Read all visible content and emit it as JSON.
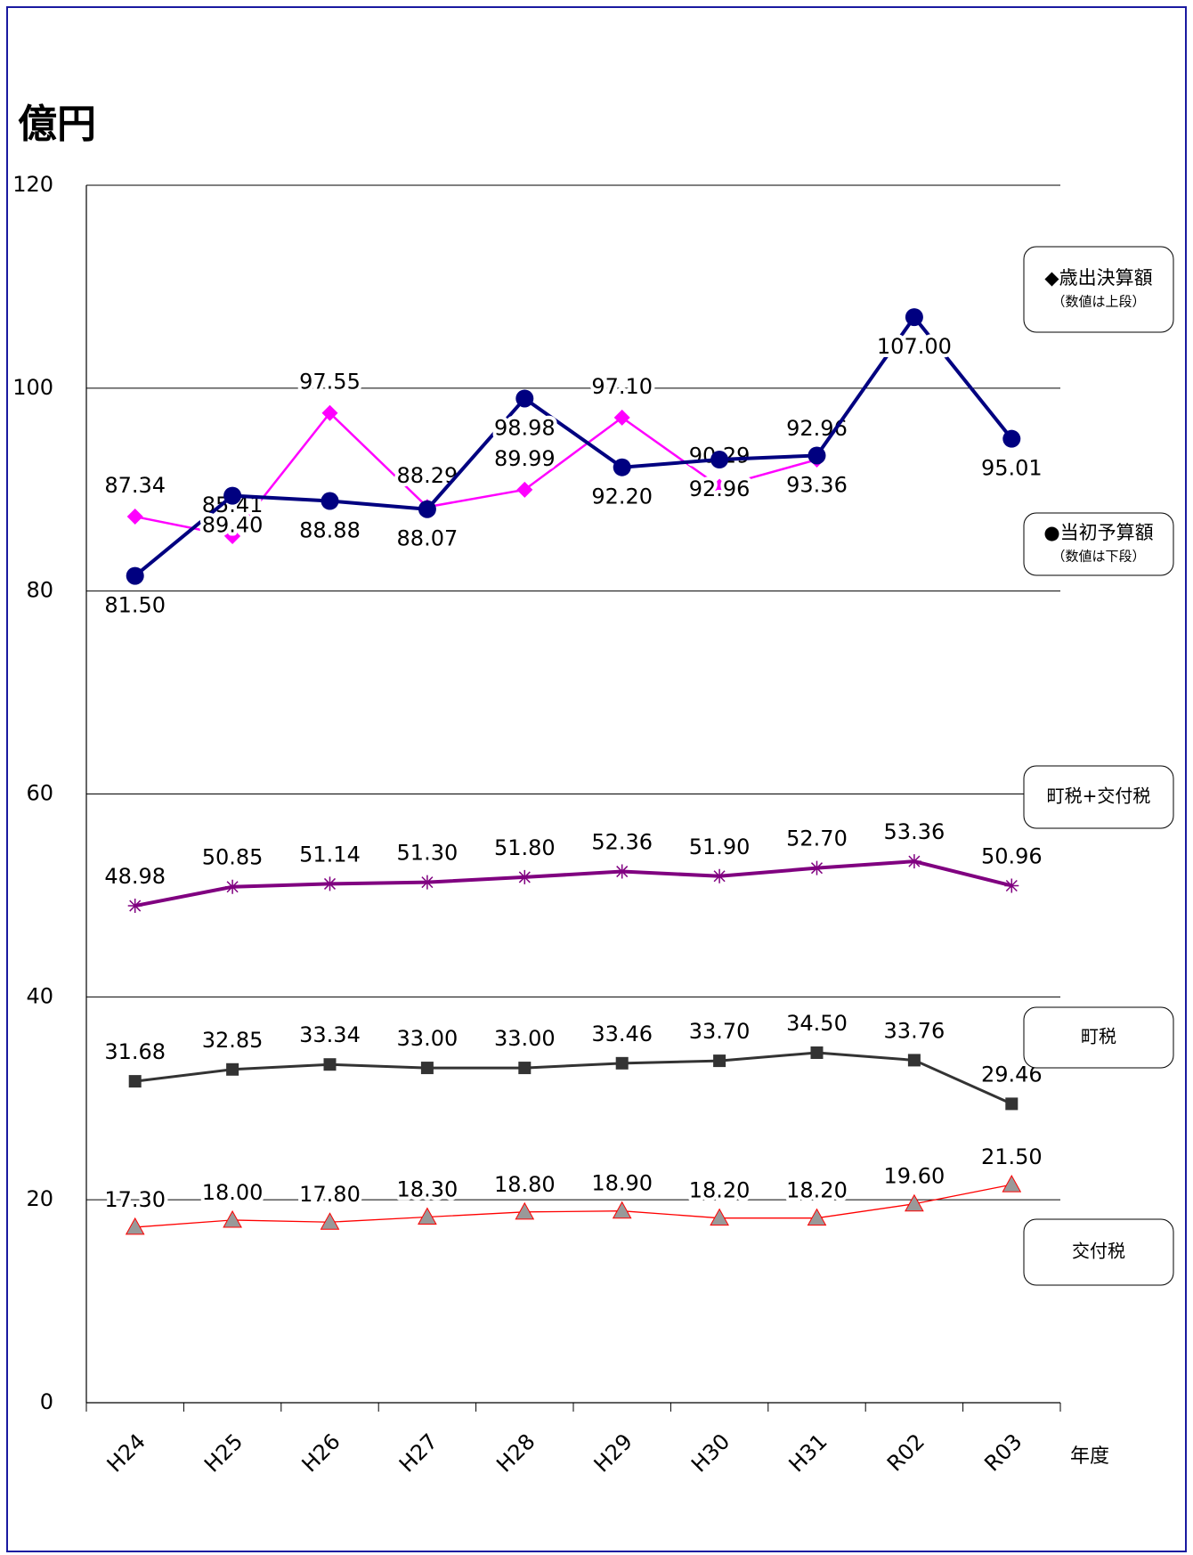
{
  "chart_data": {
    "type": "line",
    "y_label": "億円",
    "x_label": "年度",
    "categories": [
      "H24",
      "H25",
      "H26",
      "H27",
      "H28",
      "H29",
      "H30",
      "H31",
      "R02",
      "R03"
    ],
    "ylim": [
      0,
      120
    ],
    "yticks": [
      0,
      20,
      40,
      60,
      80,
      100,
      120
    ],
    "grid": true,
    "series": [
      {
        "name": "◆歳出決算額",
        "note": "（数値は上段）",
        "color": "#ff00ff",
        "marker": "diamond",
        "values": [
          87.34,
          85.41,
          97.55,
          88.29,
          89.99,
          97.1,
          90.29,
          92.96,
          null,
          null
        ],
        "value_labels": [
          "87.34",
          "85.41",
          "97.55",
          "88.29",
          "89.99",
          "97.10",
          "90.29",
          "92.96",
          null,
          null
        ]
      },
      {
        "name": "●当初予算額",
        "note": "（数値は下段）",
        "color": "#000080",
        "marker": "circle",
        "values": [
          81.5,
          89.4,
          88.88,
          88.07,
          98.98,
          92.2,
          92.96,
          93.36,
          107.0,
          95.01
        ],
        "value_labels": [
          "81.50",
          "89.40",
          "88.88",
          "88.07",
          "98.98",
          "92.20",
          "92.96",
          "93.36",
          "107.00",
          "95.01"
        ]
      },
      {
        "name": "町税+交付税",
        "color": "#800080",
        "marker": "star",
        "values": [
          48.98,
          50.85,
          51.14,
          51.3,
          51.8,
          52.36,
          51.9,
          52.7,
          53.36,
          50.96
        ],
        "value_labels": [
          "48.98",
          "50.85",
          "51.14",
          "51.30",
          "51.80",
          "52.36",
          "51.90",
          "52.70",
          "53.36",
          "50.96"
        ]
      },
      {
        "name": "町税",
        "color": "#333333",
        "marker": "square",
        "values": [
          31.68,
          32.85,
          33.34,
          33.0,
          33.0,
          33.46,
          33.7,
          34.5,
          33.76,
          29.46
        ],
        "value_labels": [
          "31.68",
          "32.85",
          "33.34",
          "33.00",
          "33.00",
          "33.46",
          "33.70",
          "34.50",
          "33.76",
          "29.46"
        ]
      },
      {
        "name": "交付税",
        "color": "#ff0000",
        "marker": "triangle",
        "values": [
          17.3,
          18.0,
          17.8,
          18.3,
          18.8,
          18.9,
          18.2,
          18.2,
          19.6,
          21.5
        ],
        "value_labels": [
          "17.30",
          "18.00",
          "17.80",
          "18.30",
          "18.80",
          "18.90",
          "18.20",
          "18.20",
          "19.60",
          "21.50"
        ]
      }
    ]
  }
}
